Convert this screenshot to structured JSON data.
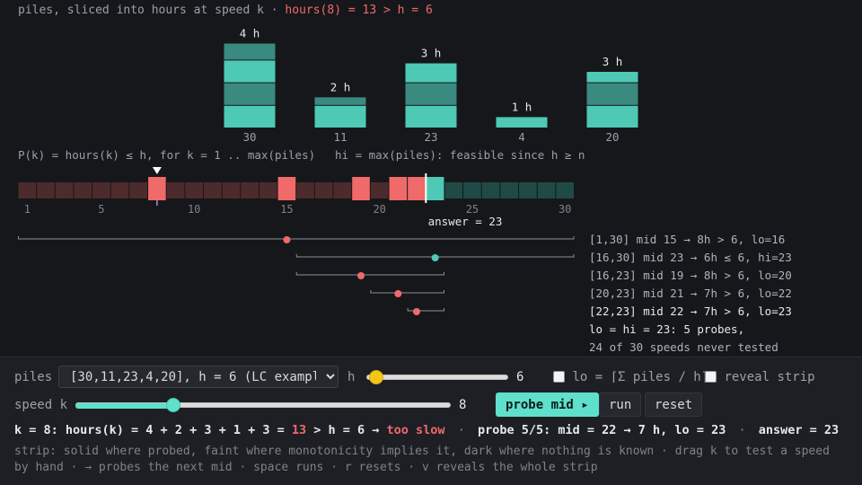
{
  "caption": {
    "prefix": "piles, sliced into hours at speed k",
    "sep": "·",
    "highlight": "hours(8) = 13 > h = 6"
  },
  "piles": [
    {
      "value": 30,
      "hours": 4,
      "label": "4 h",
      "value_label": "30"
    },
    {
      "value": 11,
      "hours": 2,
      "label": "2 h",
      "value_label": "11"
    },
    {
      "value": 23,
      "hours": 3,
      "label": "3 h",
      "value_label": "23"
    },
    {
      "value": 4,
      "hours": 1,
      "label": "1 h",
      "value_label": "4"
    },
    {
      "value": 20,
      "hours": 3,
      "label": "3 h",
      "value_label": "20"
    }
  ],
  "strip": {
    "left_caption": "P(k) = hours(k) ≤ h, for k = 1 .. max(piles)",
    "right_caption": "hi = max(piles): feasible since h ≥ n",
    "ticks": [
      "1",
      "5",
      "10",
      "15",
      "20",
      "25",
      "30"
    ],
    "answer_label": "answer = 23",
    "current_k": 8
  },
  "probes": [
    {
      "lo": 1,
      "hi": 30,
      "mid": 15,
      "ok": false,
      "log": "[1,30] mid 15 → 8h > 6, lo=16"
    },
    {
      "lo": 16,
      "hi": 30,
      "mid": 23,
      "ok": true,
      "log": "[16,30] mid 23 → 6h ≤ 6, hi=23"
    },
    {
      "lo": 16,
      "hi": 23,
      "mid": 19,
      "ok": false,
      "log": "[16,23] mid 19 → 8h > 6, lo=20"
    },
    {
      "lo": 20,
      "hi": 23,
      "mid": 21,
      "ok": false,
      "log": "[20,23] mid 21 → 7h > 6, lo=22"
    },
    {
      "lo": 22,
      "hi": 23,
      "mid": 22,
      "ok": false,
      "log": "[22,23] mid 22 → 7h > 6, lo=23"
    }
  ],
  "log_summary": "lo = hi = 23: 5 probes,",
  "log_summary2": "24 of 30 speeds never tested",
  "controls": {
    "piles_label": "piles",
    "piles_select": "[30,11,23,4,20], h = 6 (LC example)",
    "h_label": "h",
    "h_value": "6",
    "h_fraction": 0.02,
    "lo_checkbox": "lo = ⌈Σ piles / h⌉",
    "reveal_checkbox": "reveal strip",
    "speed_label": "speed k",
    "speed_value": "8",
    "speed_fraction": 0.25,
    "probe_button": "probe mid ▸",
    "run_button": "run",
    "reset_button": "reset"
  },
  "status": {
    "part1": "k = 8: hours(k) = 4 + 2 + 3 + 1 + 3 = ",
    "hours": "13",
    "part2": " > h = 6 → ",
    "verdict": "too slow",
    "dot": "·",
    "probe": "probe 5/5: mid = 22 → 7 h, lo = 23",
    "answer": "answer = 23"
  },
  "hint": "strip: solid where probed, faint where monotonicity implies it, dark where nothing is known · drag k to test a speed by hand · → probes the next mid · space runs · r resets · v reveals the whole strip",
  "colors": {
    "teal": "#4ec9b6",
    "teal_dark": "#3a8a80",
    "red": "#f06a6a",
    "red_dark": "#4d2b2c",
    "teal_faint": "#1f4a46"
  }
}
